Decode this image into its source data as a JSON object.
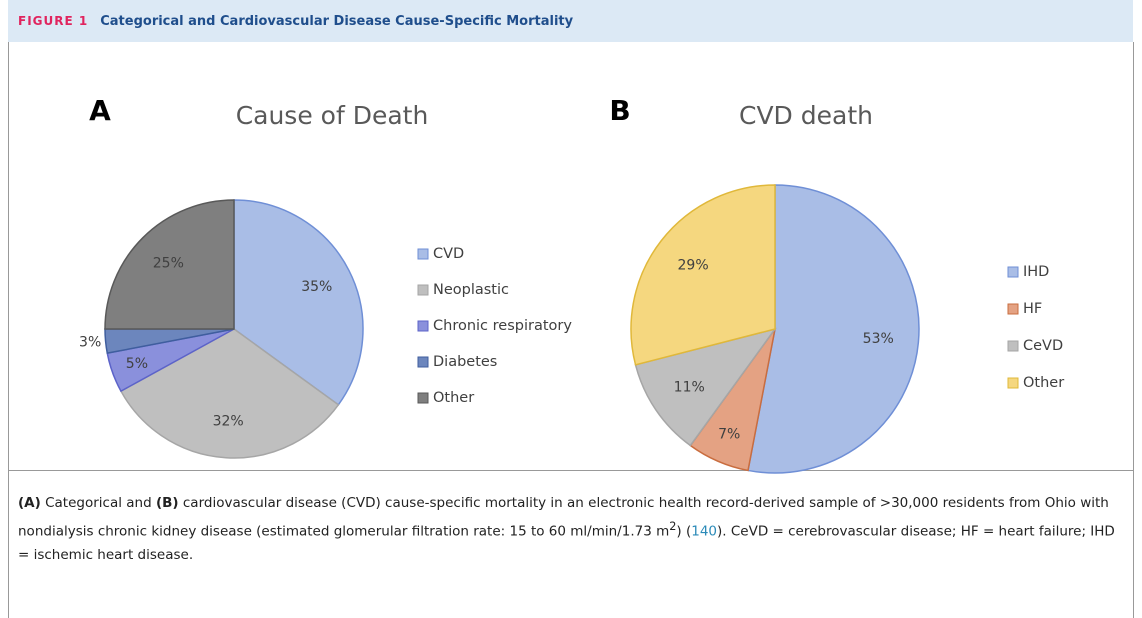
{
  "figure": {
    "label": "FIGURE 1",
    "title": "Categorical and Cardiovascular Disease Cause-Specific Mortality",
    "caption": [
      "(A)",
      " Categorical and ",
      "(B)",
      " cardiovascular disease (CVD) cause-specific mortality in an electronic health record-derived sample of >30,000 residents from Ohio with nondialysis chronic kidney disease (estimated glomerular filtration rate: 15 to 60 ml/min/1.73 m",
      "2",
      ") (",
      "140",
      "). CeVD = cerebrovascular disease; HF = heart failure; IHD = ischemic heart disease."
    ]
  },
  "chart_data": [
    {
      "type": "pie",
      "panel": "A",
      "title": "Cause of Death",
      "categories": [
        "CVD",
        "Neoplastic",
        "Chronic respiratory",
        "Diabetes",
        "Other"
      ],
      "values": [
        35,
        32,
        5,
        3,
        25
      ],
      "value_labels": [
        "35%",
        "32%",
        "5%",
        "3%",
        "25%"
      ],
      "colors": [
        "#a9bde6",
        "#bfbfbf",
        "#8a90dc",
        "#6c86bd",
        "#7f7f7f"
      ],
      "edge_colors": [
        "#6f8fd6",
        "#a6a6a6",
        "#5c63c9",
        "#3f5e9e",
        "#595959"
      ]
    },
    {
      "type": "pie",
      "panel": "B",
      "title": "CVD death",
      "categories": [
        "IHD",
        "HF",
        "CeVD",
        "Other"
      ],
      "values": [
        53,
        7,
        11,
        29
      ],
      "value_labels": [
        "53%",
        "7%",
        "11%",
        "29%"
      ],
      "colors": [
        "#a9bde6",
        "#e4a283",
        "#bfbfbf",
        "#f5d77f"
      ],
      "edge_colors": [
        "#6f8fd6",
        "#c96d3f",
        "#a6a6a6",
        "#e0b83a"
      ]
    }
  ]
}
